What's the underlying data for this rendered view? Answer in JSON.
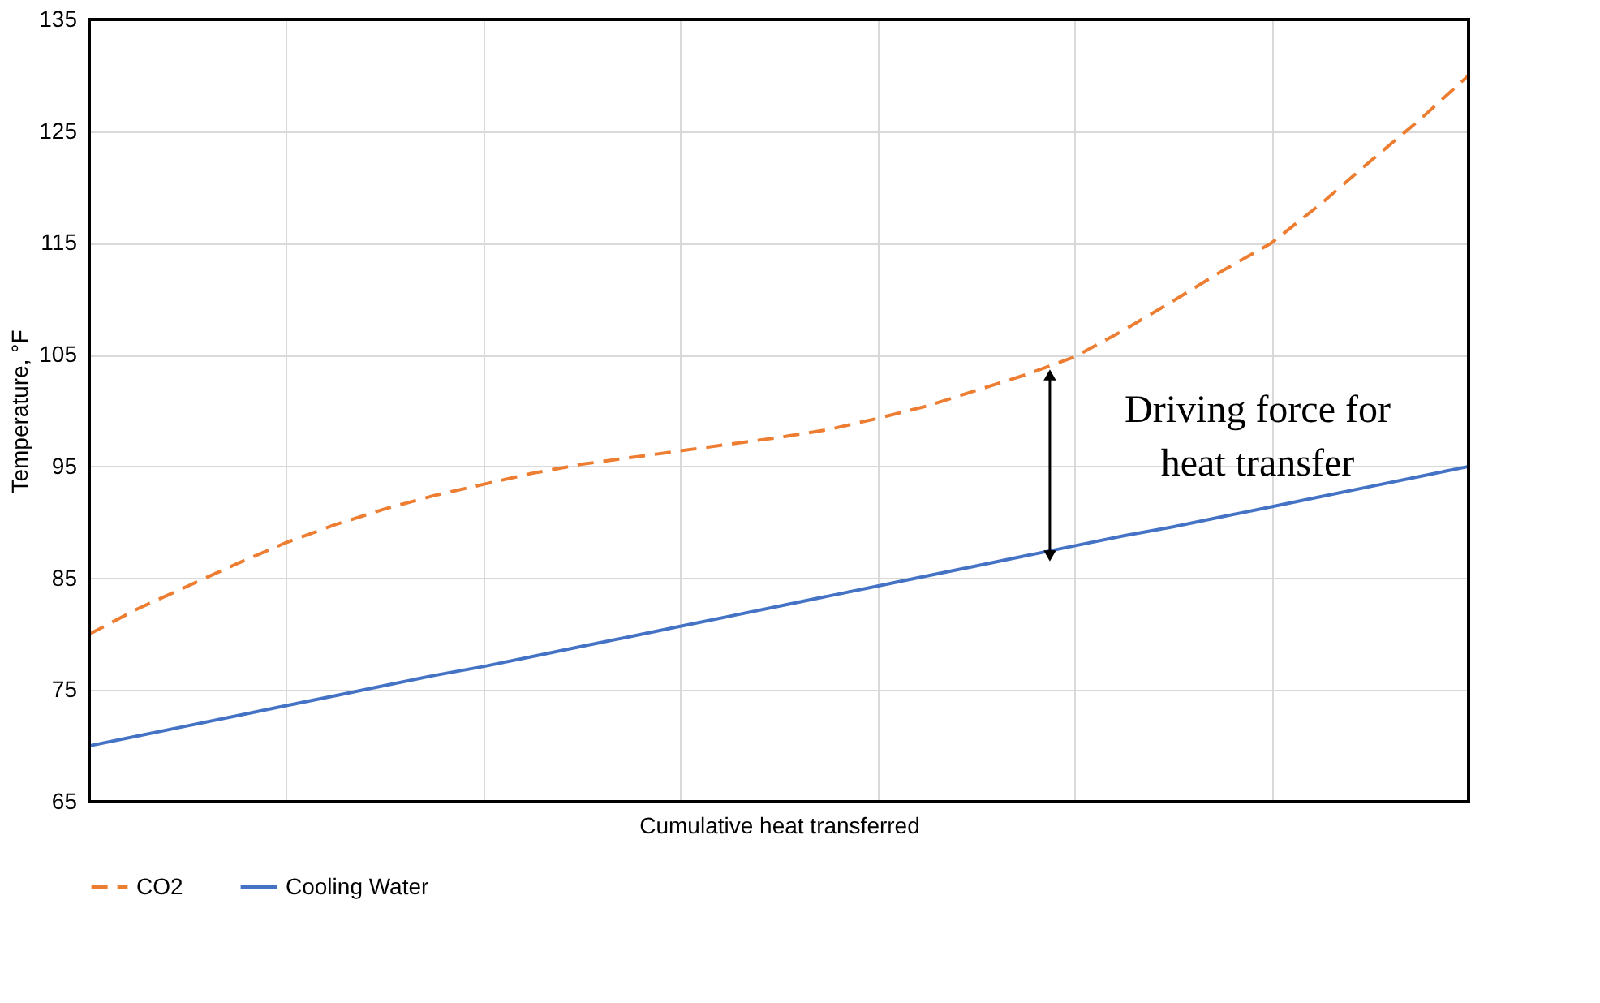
{
  "chart_data": {
    "type": "line",
    "xlabel": "Cumulative heat transferred",
    "ylabel": "Temperature, °F",
    "categories": [
      null,
      null,
      null,
      null,
      null,
      null,
      null,
      null,
      null,
      null,
      null,
      null,
      null,
      null,
      null,
      null,
      null,
      null,
      null,
      null,
      null,
      null,
      null,
      null,
      null,
      null,
      null,
      null,
      null
    ],
    "series": [
      {
        "name": "CO2",
        "color": "#ed7d31",
        "line_style": "dashed",
        "values": [
          80,
          82.3,
          84.3,
          86.3,
          88.2,
          89.8,
          91.2,
          92.4,
          93.4,
          94.4,
          95.2,
          95.8,
          96.4,
          97.0,
          97.6,
          98.3,
          99.3,
          100.4,
          101.8,
          103.2,
          104.8,
          107.2,
          109.8,
          112.5,
          115.0,
          118.5,
          122.3,
          126.0,
          130
        ]
      },
      {
        "name": "Cooling Water",
        "color": "#4472c4",
        "line_style": "solid",
        "values": [
          70,
          70.9,
          71.8,
          72.7,
          73.6,
          74.5,
          75.4,
          76.3,
          77.1,
          78.0,
          78.9,
          79.8,
          80.7,
          81.6,
          82.5,
          83.4,
          84.3,
          85.2,
          86.1,
          87.0,
          87.9,
          88.8,
          89.6,
          90.5,
          91.4,
          92.3,
          93.2,
          94.1,
          95
        ]
      }
    ],
    "ylim": [
      65,
      135
    ],
    "yticks": [
      65,
      75,
      85,
      95,
      105,
      115,
      125,
      135
    ],
    "grid": true,
    "legend": "bottom",
    "marker": "none",
    "annotations": [
      "Driving force for heat transfer"
    ]
  }
}
